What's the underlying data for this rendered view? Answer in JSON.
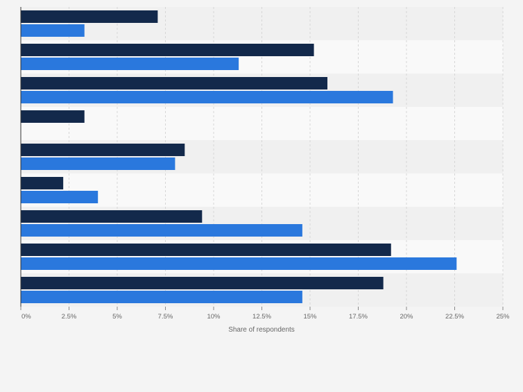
{
  "chart_data": {
    "type": "bar",
    "orientation": "horizontal",
    "categories": [
      "",
      "",
      "",
      "",
      "",
      "",
      "",
      "",
      ""
    ],
    "series": [
      {
        "color": "#13294b",
        "values": [
          7.1,
          15.2,
          15.9,
          3.3,
          8.5,
          2.2,
          9.4,
          19.2,
          18.8
        ]
      },
      {
        "color": "#2a78dd",
        "values": [
          3.3,
          11.3,
          19.3,
          0,
          8.0,
          4.0,
          14.6,
          22.6,
          14.6
        ]
      }
    ],
    "xlabel": "Share of respondents",
    "ylabel": "",
    "xlim": [
      0,
      25
    ],
    "x_ticks": [
      "0%",
      "2.5%",
      "5%",
      "7.5%",
      "10%",
      "12.5%",
      "15%",
      "17.5%",
      "20%",
      "22.5%",
      "25%"
    ],
    "grid": "vertical dashed",
    "legend": "none"
  }
}
